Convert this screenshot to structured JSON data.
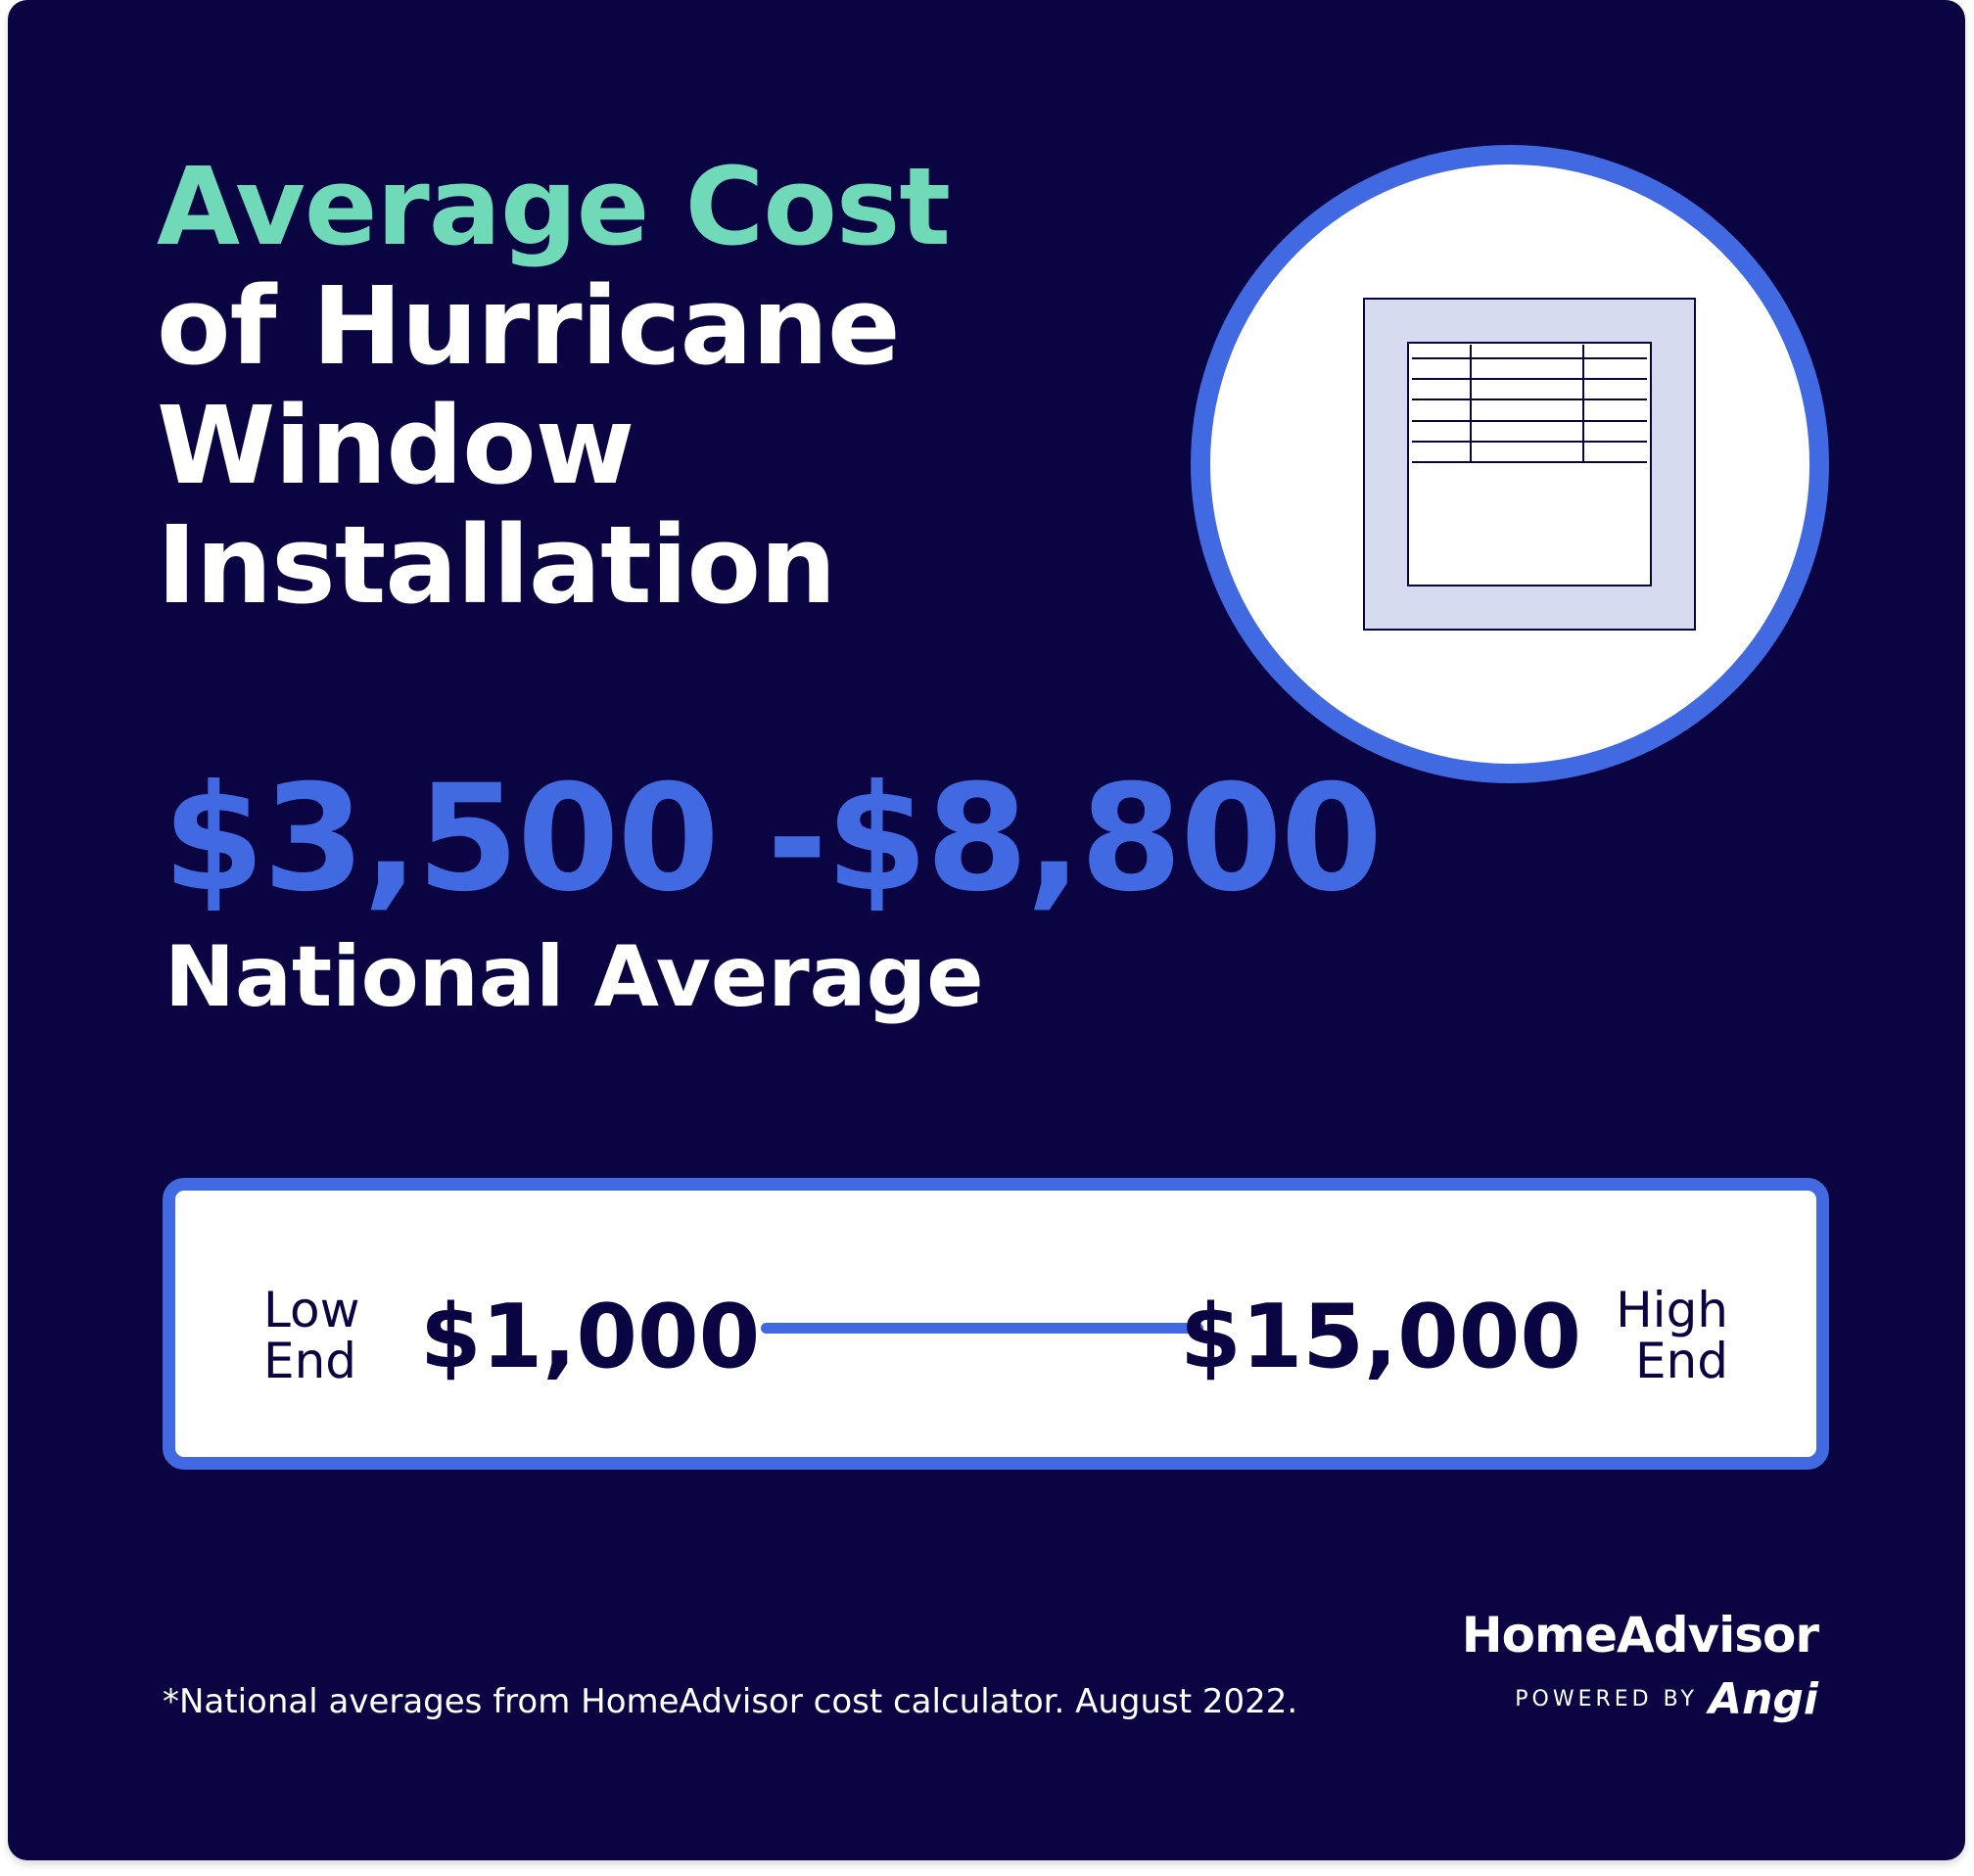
{
  "title": {
    "line1": "Average Cost",
    "line2": "of Hurricane",
    "line3": "Window",
    "line4": "Installation"
  },
  "icon": "hurricane-window-icon",
  "price_range": "$3,500 -$8,800",
  "price_label": "National Average",
  "range": {
    "low_label_1": "Low",
    "low_label_2": "End",
    "low_value": "$1,000",
    "high_value": "$15,000",
    "high_label_1": "High",
    "high_label_2": "End"
  },
  "footnote": "*National averages from HomeAdvisor cost calculator. August 2022.",
  "brand": {
    "name": "HomeAdvisor",
    "powered_by": "POWERED BY",
    "angi": "Angi"
  },
  "colors": {
    "background": "#0a0542",
    "accent_green": "#6fd9b8",
    "accent_blue": "#4169e1",
    "text_white": "#ffffff"
  }
}
